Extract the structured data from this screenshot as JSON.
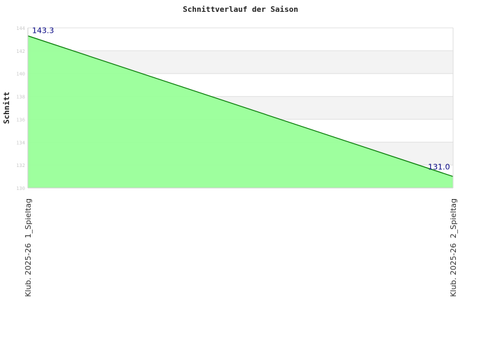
{
  "chart_data": {
    "type": "area",
    "title": "Schnittverlauf der Saison",
    "xlabel": "",
    "ylabel": "Schnitt",
    "categories": [
      "Klub. 2025-26  1_Spieltag",
      "Klub. 2025-26  2_Spieltag"
    ],
    "values": [
      143.3,
      131.0
    ],
    "data_labels": [
      "143.3",
      "131.0"
    ],
    "ylim": [
      130,
      144
    ],
    "yticks": [
      130,
      132,
      134,
      136,
      138,
      140,
      142,
      144
    ],
    "grid": true,
    "colors": {
      "fill": "#99ff99",
      "line": "#007700",
      "label": "#000080",
      "band": "#f3f3f3",
      "grid": "#e0e0e0"
    }
  }
}
